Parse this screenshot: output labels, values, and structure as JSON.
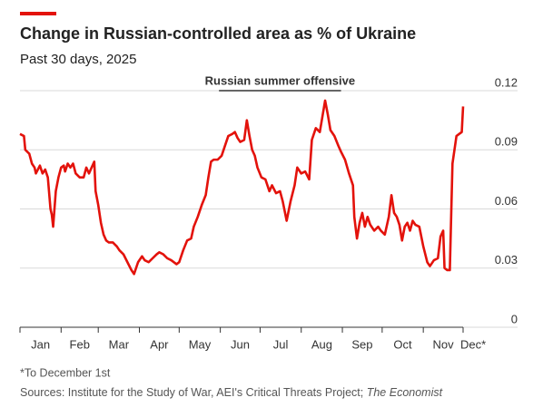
{
  "chart_data": {
    "type": "line",
    "title": "Change in Russian-controlled area as % of Ukraine",
    "subtitle": "Past 30 days, 2025",
    "footnote": "*To December 1st",
    "source": "Sources: Institute for the Study of War, AEI's Critical Threats Project; ",
    "source_italic": "The Economist",
    "annotation": {
      "label": "Russian summer offensive",
      "x": [
        150,
        242
      ]
    },
    "color": "#e3120b",
    "grid": true,
    "xlim": [
      0,
      334
    ],
    "xticks": [
      {
        "value": 0,
        "label": "Jan"
      },
      {
        "value": 31,
        "label": "Feb"
      },
      {
        "value": 59,
        "label": "Mar"
      },
      {
        "value": 90,
        "label": "Apr"
      },
      {
        "value": 120,
        "label": "May"
      },
      {
        "value": 151,
        "label": "Jun"
      },
      {
        "value": 181,
        "label": "Jul"
      },
      {
        "value": 212,
        "label": "Aug"
      },
      {
        "value": 243,
        "label": "Sep"
      },
      {
        "value": 273,
        "label": "Oct"
      },
      {
        "value": 304,
        "label": "Nov"
      },
      {
        "value": 334,
        "label": "Dec*"
      }
    ],
    "ylim": [
      0,
      0.12
    ],
    "yticks": [
      0,
      0.03,
      0.06,
      0.09,
      0.12
    ],
    "x": [
      0,
      3,
      4,
      7,
      9,
      11,
      12,
      15,
      17,
      19,
      21,
      23,
      24,
      25,
      27,
      29,
      31,
      33,
      34,
      36,
      38,
      40,
      42,
      45,
      48,
      50,
      52,
      54,
      56,
      57,
      59,
      61,
      63,
      65,
      67,
      70,
      73,
      75,
      78,
      81,
      84,
      86,
      89,
      92,
      94,
      97,
      100,
      103,
      105,
      108,
      111,
      114,
      118,
      120,
      123,
      126,
      129,
      131,
      134,
      137,
      140,
      142,
      144,
      146,
      149,
      152,
      155,
      157,
      160,
      162,
      164,
      166,
      169,
      171,
      173,
      175,
      177,
      179,
      182,
      185,
      188,
      190,
      193,
      196,
      198,
      201,
      204,
      207,
      209,
      212,
      215,
      218,
      220,
      223,
      226,
      229,
      230,
      232,
      234,
      237,
      240,
      242,
      245,
      248,
      251,
      252,
      254,
      256,
      258,
      260,
      262,
      264,
      267,
      270,
      272,
      275,
      278,
      280,
      282,
      284,
      286,
      288,
      290,
      292,
      294,
      296,
      298,
      301,
      304,
      307,
      309,
      312,
      315,
      317,
      319,
      320,
      322,
      324,
      326,
      329,
      331,
      333,
      334
    ],
    "values": [
      0.098,
      0.097,
      0.09,
      0.088,
      0.083,
      0.081,
      0.078,
      0.082,
      0.078,
      0.08,
      0.076,
      0.06,
      0.057,
      0.051,
      0.069,
      0.076,
      0.081,
      0.082,
      0.079,
      0.083,
      0.081,
      0.083,
      0.078,
      0.076,
      0.076,
      0.081,
      0.078,
      0.081,
      0.084,
      0.069,
      0.062,
      0.053,
      0.047,
      0.044,
      0.043,
      0.043,
      0.041,
      0.039,
      0.037,
      0.033,
      0.029,
      0.027,
      0.033,
      0.036,
      0.034,
      0.033,
      0.035,
      0.037,
      0.038,
      0.037,
      0.035,
      0.034,
      0.032,
      0.033,
      0.039,
      0.044,
      0.045,
      0.051,
      0.056,
      0.062,
      0.067,
      0.076,
      0.084,
      0.085,
      0.085,
      0.087,
      0.093,
      0.097,
      0.098,
      0.099,
      0.096,
      0.094,
      0.095,
      0.105,
      0.097,
      0.09,
      0.087,
      0.081,
      0.076,
      0.075,
      0.069,
      0.072,
      0.068,
      0.069,
      0.064,
      0.054,
      0.064,
      0.072,
      0.081,
      0.078,
      0.079,
      0.075,
      0.095,
      0.101,
      0.099,
      0.111,
      0.115,
      0.108,
      0.1,
      0.097,
      0.092,
      0.089,
      0.085,
      0.078,
      0.072,
      0.056,
      0.045,
      0.053,
      0.058,
      0.051,
      0.056,
      0.052,
      0.049,
      0.051,
      0.049,
      0.047,
      0.056,
      0.067,
      0.058,
      0.056,
      0.052,
      0.044,
      0.051,
      0.053,
      0.049,
      0.054,
      0.052,
      0.051,
      0.041,
      0.033,
      0.031,
      0.034,
      0.035,
      0.046,
      0.049,
      0.03,
      0.029,
      0.029,
      0.083,
      0.097,
      0.098,
      0.099,
      0.112
    ]
  }
}
